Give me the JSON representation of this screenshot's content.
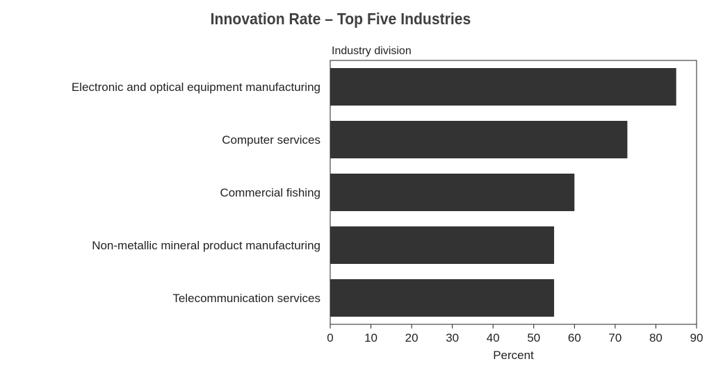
{
  "chart_data": {
    "type": "bar",
    "orientation": "horizontal",
    "title": "Innovation Rate – Top Five Industries",
    "category_axis_label": "Industry division",
    "xlabel": "Percent",
    "categories": [
      "Electronic and optical equipment manufacturing",
      "Computer services",
      "Commercial fishing",
      "Non-metallic mineral product manufacturing",
      "Telecommunication services"
    ],
    "values": [
      85,
      73,
      60,
      55,
      55
    ],
    "xlim": [
      0,
      90
    ],
    "xticks": [
      "0",
      "10",
      "20",
      "30",
      "40",
      "50",
      "60",
      "70",
      "80",
      "90"
    ],
    "bar_color": "#333333",
    "grid": false,
    "legend": "none"
  }
}
